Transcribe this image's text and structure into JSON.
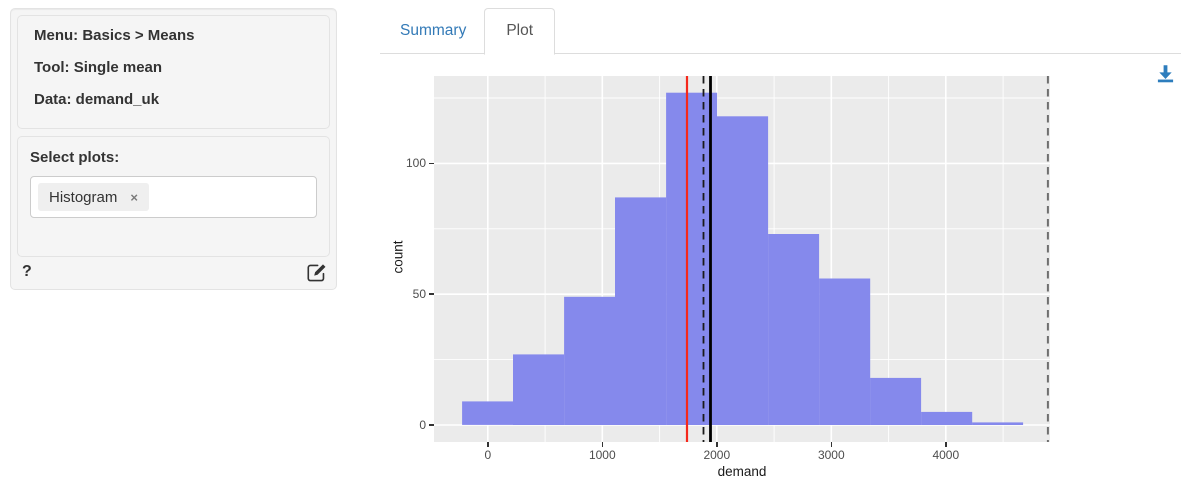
{
  "sidebar": {
    "info": {
      "menu": "Menu: Basics > Means",
      "tool": "Tool: Single mean",
      "data": "Data: demand_uk"
    },
    "select_plots_label": "Select plots:",
    "selected_plots": [
      {
        "label": "Histogram",
        "remove_glyph": "×"
      }
    ],
    "help_label": "?",
    "icons": {
      "edit": "pencil-square-icon"
    }
  },
  "main": {
    "tabs": [
      {
        "label": "Summary",
        "active": false
      },
      {
        "label": "Plot",
        "active": true
      }
    ],
    "icons": {
      "download": "download-icon"
    },
    "accent_color": "#337ab7"
  },
  "chart_data": {
    "type": "bar",
    "subtype": "histogram",
    "title": "",
    "xlabel": "demand",
    "ylabel": "count",
    "bin_edges": [
      -225,
      220,
      666,
      1111,
      1557,
      2002,
      2448,
      2893,
      3339,
      3784,
      4230,
      4675
    ],
    "counts": [
      9,
      27,
      49,
      87,
      127,
      118,
      73,
      56,
      18,
      5,
      1
    ],
    "x_ticks": [
      0,
      1000,
      2000,
      3000,
      4000
    ],
    "x_minor_ticks": [
      500,
      1500,
      2500,
      3500,
      4500
    ],
    "y_ticks": [
      0,
      50,
      100
    ],
    "y_minor_ticks": [
      25,
      75,
      125
    ],
    "xlim": [
      -470,
      4910
    ],
    "ylim": [
      -6.5,
      133.4
    ],
    "grid": true,
    "legend": null,
    "bar_color": "#8589ec",
    "panel_bg": "#ebebeb",
    "grid_color": "#ffffff",
    "tick_label_color": "#4d4d4d",
    "vlines": [
      {
        "value": 1740,
        "color": "#f5281b",
        "style": "solid",
        "width": 2.2,
        "name": "red-solid-line"
      },
      {
        "value": 1884,
        "color": "#1a1a1a",
        "style": "dashed",
        "width": 1.8,
        "name": "black-dashed-line"
      },
      {
        "value": 1945,
        "color": "#000000",
        "style": "solid",
        "width": 2.8,
        "name": "black-solid-line"
      },
      {
        "value": 4892,
        "color": "#6e6e6e",
        "style": "dashed",
        "width": 2.0,
        "name": "gray-dashed-line"
      }
    ]
  }
}
